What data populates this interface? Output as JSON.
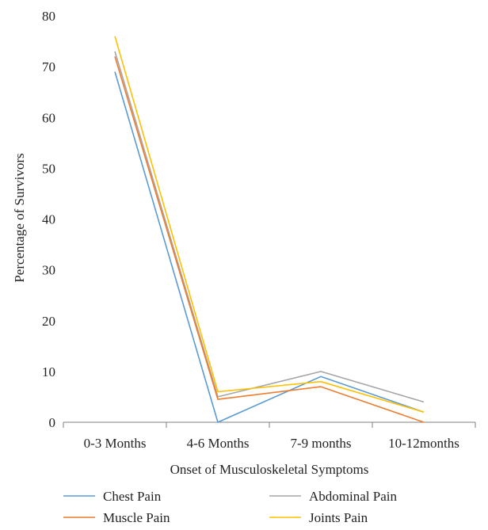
{
  "chart_data": {
    "type": "line",
    "title": "",
    "xlabel": "Onset of Musculoskeletal Symptoms",
    "ylabel": "Percentage of Survivors",
    "categories": [
      "0-3 Months",
      "4-6 Months",
      "7-9 months",
      "10-12months"
    ],
    "ylim": [
      0,
      80
    ],
    "yticks": [
      0,
      10,
      20,
      30,
      40,
      50,
      60,
      70,
      80
    ],
    "grid": false,
    "legend_position": "bottom",
    "series": [
      {
        "name": "Chest Pain",
        "color": "#5b9bd5",
        "values": [
          69,
          0,
          9,
          2
        ]
      },
      {
        "name": "Abdominal Pain",
        "color": "#a5a5a5",
        "values": [
          73,
          5,
          10,
          4
        ]
      },
      {
        "name": "Muscle Pain",
        "color": "#ed7d31",
        "values": [
          72,
          4.5,
          7,
          0
        ]
      },
      {
        "name": "Joints Pain",
        "color": "#ffc000",
        "values": [
          76,
          6,
          8,
          2
        ]
      }
    ]
  }
}
